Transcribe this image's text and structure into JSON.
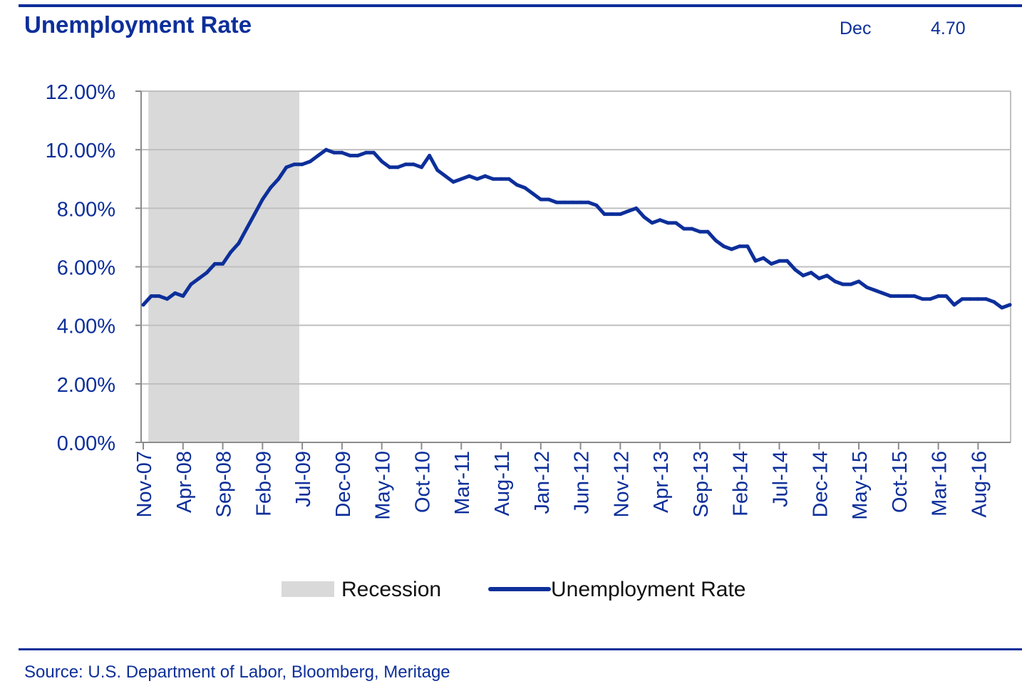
{
  "header": {
    "title": "Unemployment Rate",
    "latest_label": "Dec",
    "latest_value": "4.70"
  },
  "footer": {
    "source": "Source: U.S. Department of Labor, Bloomberg, Meritage"
  },
  "colors": {
    "accent": "#0d2f9a",
    "recession": "#d9d9d9",
    "grid": "#bfbfbf",
    "axis": "#8c8c8c"
  },
  "chart_data": {
    "type": "line",
    "title": "Unemployment Rate",
    "xlabel": "",
    "ylabel": "",
    "ylim": [
      0,
      12
    ],
    "yticks": [
      "0.00%",
      "2.00%",
      "4.00%",
      "6.00%",
      "8.00%",
      "10.00%",
      "12.00%"
    ],
    "grid": true,
    "legend_position": "bottom",
    "x_tick_labels": [
      "Nov-07",
      "Apr-08",
      "Sep-08",
      "Feb-09",
      "Jul-09",
      "Dec-09",
      "May-10",
      "Oct-10",
      "Mar-11",
      "Aug-11",
      "Jan-12",
      "Jun-12",
      "Nov-12",
      "Apr-13",
      "Sep-13",
      "Feb-14",
      "Jul-14",
      "Dec-14",
      "May-15",
      "Oct-15",
      "Mar-16",
      "Aug-16"
    ],
    "x_start": "Nov-07",
    "x_end": "Dec-16",
    "recession": {
      "name": "Recession",
      "start": "Dec-07",
      "end": "Jun-09"
    },
    "series": [
      {
        "name": "Unemployment Rate",
        "values": [
          4.7,
          5.0,
          5.0,
          4.9,
          5.1,
          5.0,
          5.4,
          5.6,
          5.8,
          6.1,
          6.1,
          6.5,
          6.8,
          7.3,
          7.8,
          8.3,
          8.7,
          9.0,
          9.4,
          9.5,
          9.5,
          9.6,
          9.8,
          10.0,
          9.9,
          9.9,
          9.8,
          9.8,
          9.9,
          9.9,
          9.6,
          9.4,
          9.4,
          9.5,
          9.5,
          9.4,
          9.8,
          9.3,
          9.1,
          8.9,
          9.0,
          9.1,
          9.0,
          9.1,
          9.0,
          9.0,
          9.0,
          8.8,
          8.7,
          8.5,
          8.3,
          8.3,
          8.2,
          8.2,
          8.2,
          8.2,
          8.2,
          8.1,
          7.8,
          7.8,
          7.8,
          7.9,
          8.0,
          7.7,
          7.5,
          7.6,
          7.5,
          7.5,
          7.3,
          7.3,
          7.2,
          7.2,
          6.9,
          6.7,
          6.6,
          6.7,
          6.7,
          6.2,
          6.3,
          6.1,
          6.2,
          6.2,
          5.9,
          5.7,
          5.8,
          5.6,
          5.7,
          5.5,
          5.4,
          5.4,
          5.5,
          5.3,
          5.2,
          5.1,
          5.0,
          5.0,
          5.0,
          5.0,
          4.9,
          4.9,
          5.0,
          5.0,
          4.7,
          4.9,
          4.9,
          4.9,
          4.9,
          4.8,
          4.6,
          4.7
        ]
      }
    ]
  }
}
